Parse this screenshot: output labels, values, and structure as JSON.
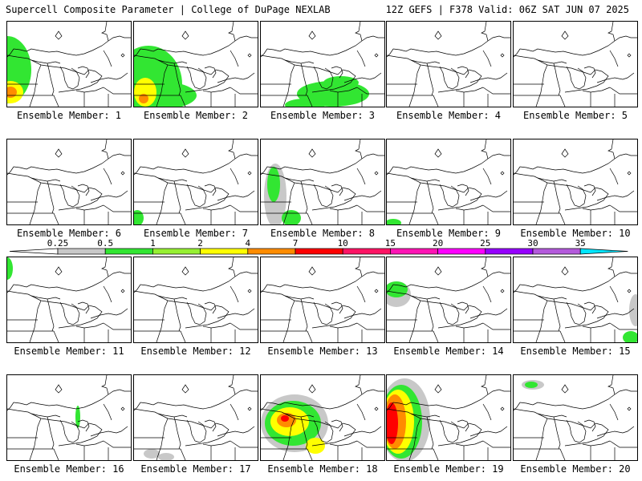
{
  "header": {
    "title": "Supercell Composite Parameter | College of DuPage NEXLAB",
    "run": "12Z GEFS | F378 Valid: 06Z SAT JUN 07 2025"
  },
  "label_prefix": "Ensemble Member: ",
  "members": [
    {
      "id": "1",
      "blobs": [
        {
          "x": 0,
          "y": 60,
          "rx": 30,
          "ry": 42,
          "level": 0.5
        },
        {
          "x": 4,
          "y": 88,
          "rx": 16,
          "ry": 14,
          "level": 2
        },
        {
          "x": 4,
          "y": 88,
          "rx": 8,
          "ry": 7,
          "level": 4
        }
      ]
    },
    {
      "id": "2",
      "blobs": [
        {
          "x": 18,
          "y": 78,
          "rx": 42,
          "ry": 48,
          "level": 0.5
        },
        {
          "x": 28,
          "y": 92,
          "rx": 50,
          "ry": 18,
          "level": 0.5
        },
        {
          "x": 14,
          "y": 88,
          "rx": 14,
          "ry": 18,
          "level": 2
        },
        {
          "x": 12,
          "y": 96,
          "rx": 6,
          "ry": 6,
          "level": 4
        }
      ]
    },
    {
      "id": "3",
      "blobs": [
        {
          "x": 90,
          "y": 90,
          "rx": 45,
          "ry": 16,
          "level": 0.5
        },
        {
          "x": 55,
          "y": 104,
          "rx": 25,
          "ry": 8,
          "level": 0.5
        },
        {
          "x": 100,
          "y": 76,
          "rx": 22,
          "ry": 8,
          "level": 0.5
        }
      ]
    },
    {
      "id": "4",
      "blobs": []
    },
    {
      "id": "5",
      "blobs": []
    },
    {
      "id": "6",
      "blobs": []
    },
    {
      "id": "7",
      "blobs": [
        {
          "x": 4,
          "y": 98,
          "rx": 8,
          "ry": 10,
          "level": 0.5
        }
      ]
    },
    {
      "id": "8",
      "blobs": [
        {
          "x": 18,
          "y": 70,
          "rx": 14,
          "ry": 40,
          "level": 0.25
        },
        {
          "x": 16,
          "y": 56,
          "rx": 8,
          "ry": 22,
          "level": 0.5
        },
        {
          "x": 38,
          "y": 98,
          "rx": 12,
          "ry": 10,
          "level": 0.5
        }
      ]
    },
    {
      "id": "9",
      "blobs": [
        {
          "x": 8,
          "y": 104,
          "rx": 10,
          "ry": 5,
          "level": 0.5
        }
      ]
    },
    {
      "id": "10",
      "blobs": []
    },
    {
      "id": "11",
      "blobs": [
        {
          "x": 0,
          "y": 14,
          "rx": 7,
          "ry": 14,
          "level": 0.5
        }
      ]
    },
    {
      "id": "12",
      "blobs": []
    },
    {
      "id": "13",
      "blobs": []
    },
    {
      "id": "14",
      "blobs": [
        {
          "x": 12,
          "y": 46,
          "rx": 18,
          "ry": 16,
          "level": 0.25
        },
        {
          "x": 12,
          "y": 40,
          "rx": 14,
          "ry": 10,
          "level": 0.5
        }
      ]
    },
    {
      "id": "15",
      "blobs": [
        {
          "x": 152,
          "y": 66,
          "rx": 8,
          "ry": 20,
          "level": 0.25
        },
        {
          "x": 146,
          "y": 100,
          "rx": 10,
          "ry": 8,
          "level": 0.5
        }
      ]
    },
    {
      "id": "16",
      "blobs": [
        {
          "x": 88,
          "y": 52,
          "rx": 3,
          "ry": 14,
          "level": 0.5
        }
      ]
    },
    {
      "id": "17",
      "blobs": [
        {
          "x": 22,
          "y": 98,
          "rx": 10,
          "ry": 6,
          "level": 0.25
        },
        {
          "x": 40,
          "y": 102,
          "rx": 10,
          "ry": 5,
          "level": 0.25
        }
      ]
    },
    {
      "id": "18",
      "blobs": [
        {
          "x": 42,
          "y": 60,
          "rx": 42,
          "ry": 36,
          "level": 0.25
        },
        {
          "x": 40,
          "y": 60,
          "rx": 35,
          "ry": 28,
          "level": 0.5
        },
        {
          "x": 36,
          "y": 58,
          "rx": 24,
          "ry": 18,
          "level": 2
        },
        {
          "x": 32,
          "y": 56,
          "rx": 12,
          "ry": 9,
          "level": 4
        },
        {
          "x": 30,
          "y": 54,
          "rx": 5,
          "ry": 4,
          "level": 7
        },
        {
          "x": 68,
          "y": 88,
          "rx": 12,
          "ry": 10,
          "level": 2
        }
      ]
    },
    {
      "id": "19",
      "blobs": [
        {
          "x": 22,
          "y": 56,
          "rx": 32,
          "ry": 52,
          "level": 0.25
        },
        {
          "x": 18,
          "y": 58,
          "rx": 26,
          "ry": 46,
          "level": 0.5
        },
        {
          "x": 14,
          "y": 58,
          "rx": 20,
          "ry": 40,
          "level": 2
        },
        {
          "x": 10,
          "y": 58,
          "rx": 14,
          "ry": 34,
          "level": 4
        },
        {
          "x": 6,
          "y": 60,
          "rx": 8,
          "ry": 26,
          "level": 7
        }
      ]
    },
    {
      "id": "20",
      "blobs": [
        {
          "x": 24,
          "y": 12,
          "rx": 14,
          "ry": 6,
          "level": 0.25
        },
        {
          "x": 22,
          "y": 12,
          "rx": 8,
          "ry": 4,
          "level": 0.5
        }
      ]
    }
  ],
  "legend": {
    "labels": [
      "0.25",
      "0.5",
      "1",
      "2",
      "4",
      "7",
      "10",
      "15",
      "20",
      "25",
      "30",
      "35"
    ],
    "bins": [
      {
        "from": 0.25,
        "color": "#c8c8c8"
      },
      {
        "from": 0.5,
        "color": "#32e632"
      },
      {
        "from": 1,
        "color": "#96f032"
      },
      {
        "from": 2,
        "color": "#ffff00"
      },
      {
        "from": 4,
        "color": "#ff8c00"
      },
      {
        "from": 7,
        "color": "#ff0000"
      },
      {
        "from": 10,
        "color": "#ff1464"
      },
      {
        "from": 15,
        "color": "#ff14b4"
      },
      {
        "from": 20,
        "color": "#ff00ff"
      },
      {
        "from": 25,
        "color": "#9600ff"
      },
      {
        "from": 30,
        "color": "#b45adc"
      },
      {
        "from": 35,
        "color": "#00e6ff"
      }
    ]
  }
}
